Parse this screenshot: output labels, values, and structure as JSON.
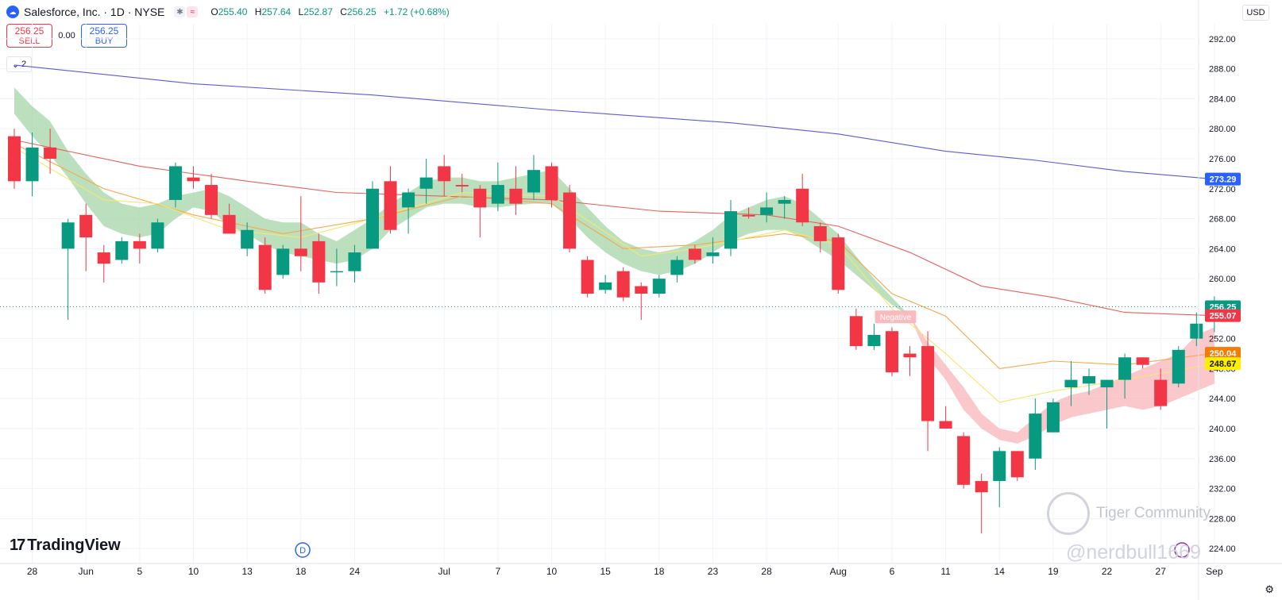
{
  "header": {
    "title": "Salesforce, Inc. · 1D · NYSE",
    "badge1": "✱",
    "badge2": "≈",
    "o_label": "O",
    "o": "255.40",
    "h_label": "H",
    "h": "257.64",
    "l_label": "L",
    "l": "252.87",
    "c_label": "C",
    "c": "256.25",
    "change": "+1.72 (+0.68%)"
  },
  "trade": {
    "sell_price": "256.25",
    "sell_label": "SELL",
    "spread": "0.00",
    "buy_price": "256.25",
    "buy_label": "BUY"
  },
  "indicator_toggle": {
    "icon": "chevron-down-icon",
    "count": "2"
  },
  "currency": "USD",
  "branding": {
    "tradingview": "TradingView",
    "watermark": "Tiger Community",
    "handle": "@nerdbull1669"
  },
  "colors": {
    "up": "#089981",
    "down": "#f23645",
    "ma200": "#5b5bd6",
    "ma50": "#e8615a",
    "ma20": "#f7a84a",
    "ma10": "#f5e86c",
    "cloud_up": "#a5d6a7",
    "cloud_down": "#f8b4b8"
  },
  "chart_data": {
    "type": "candlestick",
    "title": "Salesforce, Inc. · 1D · NYSE",
    "ylim": [
      222,
      294
    ],
    "y_ticks": [
      "292.00",
      "288.00",
      "284.00",
      "280.00",
      "276.00",
      "272.00",
      "268.00",
      "264.00",
      "260.00",
      "256.00",
      "252.00",
      "248.00",
      "244.00",
      "240.00",
      "236.00",
      "232.00",
      "228.00",
      "224.00"
    ],
    "x_ticks": [
      {
        "i": 1,
        "label": "28"
      },
      {
        "i": 4,
        "label": "Jun"
      },
      {
        "i": 7,
        "label": "5"
      },
      {
        "i": 10,
        "label": "10"
      },
      {
        "i": 13,
        "label": "13"
      },
      {
        "i": 16,
        "label": "18"
      },
      {
        "i": 19,
        "label": "24"
      },
      {
        "i": 24,
        "label": "Jul"
      },
      {
        "i": 27,
        "label": "7"
      },
      {
        "i": 30,
        "label": "10"
      },
      {
        "i": 33,
        "label": "15"
      },
      {
        "i": 36,
        "label": "18"
      },
      {
        "i": 39,
        "label": "23"
      },
      {
        "i": 42,
        "label": "28"
      },
      {
        "i": 46,
        "label": "Aug"
      },
      {
        "i": 49,
        "label": "6"
      },
      {
        "i": 52,
        "label": "11"
      },
      {
        "i": 55,
        "label": "14"
      },
      {
        "i": 58,
        "label": "19"
      },
      {
        "i": 61,
        "label": "22"
      },
      {
        "i": 64,
        "label": "27"
      },
      {
        "i": 67,
        "label": "Sep"
      }
    ],
    "candles": [
      {
        "o": 279.0,
        "h": 280.0,
        "l": 272.0,
        "c": 273.0
      },
      {
        "o": 273.0,
        "h": 279.5,
        "l": 271.0,
        "c": 277.5
      },
      {
        "o": 277.5,
        "h": 280.0,
        "l": 274.0,
        "c": 276.0
      },
      {
        "o": 264.0,
        "h": 268.0,
        "l": 254.5,
        "c": 267.5
      },
      {
        "o": 268.5,
        "h": 270.0,
        "l": 261.0,
        "c": 265.5
      },
      {
        "o": 263.5,
        "h": 264.5,
        "l": 259.5,
        "c": 262.0
      },
      {
        "o": 262.5,
        "h": 265.5,
        "l": 262.0,
        "c": 265.0
      },
      {
        "o": 265.0,
        "h": 266.0,
        "l": 262.0,
        "c": 264.0
      },
      {
        "o": 264.0,
        "h": 268.0,
        "l": 263.5,
        "c": 267.5
      },
      {
        "o": 270.5,
        "h": 275.5,
        "l": 269.5,
        "c": 275.0
      },
      {
        "o": 273.5,
        "h": 275.0,
        "l": 272.0,
        "c": 273.0
      },
      {
        "o": 272.5,
        "h": 274.0,
        "l": 268.0,
        "c": 268.5
      },
      {
        "o": 268.5,
        "h": 270.0,
        "l": 266.0,
        "c": 266.0
      },
      {
        "o": 264.0,
        "h": 267.5,
        "l": 263.0,
        "c": 266.5
      },
      {
        "o": 264.5,
        "h": 265.5,
        "l": 258.0,
        "c": 258.5
      },
      {
        "o": 260.5,
        "h": 264.5,
        "l": 260.0,
        "c": 264.0
      },
      {
        "o": 264.0,
        "h": 271.0,
        "l": 261.0,
        "c": 263.0
      },
      {
        "o": 265.0,
        "h": 266.0,
        "l": 258.0,
        "c": 259.5
      },
      {
        "o": 261.0,
        "h": 264.0,
        "l": 259.0,
        "c": 261.0
      },
      {
        "o": 261.0,
        "h": 264.5,
        "l": 259.5,
        "c": 263.5
      },
      {
        "o": 264.0,
        "h": 273.0,
        "l": 264.0,
        "c": 272.0
      },
      {
        "o": 273.0,
        "h": 275.0,
        "l": 266.0,
        "c": 266.5
      },
      {
        "o": 269.5,
        "h": 272.0,
        "l": 266.0,
        "c": 271.5
      },
      {
        "o": 272.0,
        "h": 276.0,
        "l": 270.0,
        "c": 273.5
      },
      {
        "o": 275.0,
        "h": 276.5,
        "l": 271.0,
        "c": 273.0
      },
      {
        "o": 272.5,
        "h": 274.0,
        "l": 271.5,
        "c": 272.3
      },
      {
        "o": 272.0,
        "h": 272.5,
        "l": 265.5,
        "c": 269.5
      },
      {
        "o": 270.0,
        "h": 275.5,
        "l": 269.0,
        "c": 272.5
      },
      {
        "o": 272.0,
        "h": 275.0,
        "l": 268.5,
        "c": 270.0
      },
      {
        "o": 271.5,
        "h": 276.5,
        "l": 270.5,
        "c": 274.5
      },
      {
        "o": 275.0,
        "h": 275.5,
        "l": 269.5,
        "c": 270.5
      },
      {
        "o": 271.5,
        "h": 272.5,
        "l": 263.5,
        "c": 264.0
      },
      {
        "o": 262.5,
        "h": 263.0,
        "l": 257.5,
        "c": 258.0
      },
      {
        "o": 258.5,
        "h": 260.5,
        "l": 258.0,
        "c": 259.5
      },
      {
        "o": 261.0,
        "h": 261.5,
        "l": 257.0,
        "c": 257.5
      },
      {
        "o": 259.0,
        "h": 259.5,
        "l": 254.5,
        "c": 258.0
      },
      {
        "o": 258.0,
        "h": 260.5,
        "l": 257.5,
        "c": 260.0
      },
      {
        "o": 260.5,
        "h": 263.0,
        "l": 259.5,
        "c": 262.5
      },
      {
        "o": 264.0,
        "h": 264.5,
        "l": 262.0,
        "c": 262.5
      },
      {
        "o": 263.0,
        "h": 265.5,
        "l": 262.0,
        "c": 263.5
      },
      {
        "o": 264.0,
        "h": 270.5,
        "l": 263.0,
        "c": 269.0
      },
      {
        "o": 268.5,
        "h": 269.5,
        "l": 268.0,
        "c": 268.3
      },
      {
        "o": 268.5,
        "h": 271.5,
        "l": 267.5,
        "c": 269.5
      },
      {
        "o": 270.0,
        "h": 271.0,
        "l": 268.0,
        "c": 270.5
      },
      {
        "o": 272.0,
        "h": 274.0,
        "l": 267.0,
        "c": 267.5
      },
      {
        "o": 267.0,
        "h": 267.5,
        "l": 263.5,
        "c": 265.0
      },
      {
        "o": 265.5,
        "h": 266.0,
        "l": 258.0,
        "c": 258.5
      },
      {
        "o": 255.0,
        "h": 256.0,
        "l": 250.5,
        "c": 251.0
      },
      {
        "o": 251.0,
        "h": 254.0,
        "l": 250.5,
        "c": 252.5
      },
      {
        "o": 253.0,
        "h": 253.5,
        "l": 247.0,
        "c": 247.5
      },
      {
        "o": 250.0,
        "h": 251.0,
        "l": 247.0,
        "c": 249.5
      },
      {
        "o": 251.0,
        "h": 253.0,
        "l": 237.0,
        "c": 241.0
      },
      {
        "o": 241.0,
        "h": 243.0,
        "l": 240.0,
        "c": 240.0
      },
      {
        "o": 239.0,
        "h": 239.5,
        "l": 232.0,
        "c": 232.5
      },
      {
        "o": 233.0,
        "h": 234.0,
        "l": 226.0,
        "c": 231.5
      },
      {
        "o": 233.0,
        "h": 237.5,
        "l": 229.5,
        "c": 237.0
      },
      {
        "o": 237.0,
        "h": 237.0,
        "l": 233.0,
        "c": 233.5
      },
      {
        "o": 236.0,
        "h": 244.0,
        "l": 234.5,
        "c": 242.0
      },
      {
        "o": 239.5,
        "h": 244.0,
        "l": 239.5,
        "c": 243.5
      },
      {
        "o": 245.5,
        "h": 249.0,
        "l": 243.0,
        "c": 246.5
      },
      {
        "o": 246.0,
        "h": 248.0,
        "l": 244.5,
        "c": 247.0
      },
      {
        "o": 245.5,
        "h": 246.5,
        "l": 240.0,
        "c": 246.5
      },
      {
        "o": 246.5,
        "h": 250.0,
        "l": 244.0,
        "c": 249.5
      },
      {
        "o": 249.5,
        "h": 249.5,
        "l": 248.0,
        "c": 248.5
      },
      {
        "o": 246.5,
        "h": 248.0,
        "l": 242.5,
        "c": 243.0
      },
      {
        "o": 246.0,
        "h": 251.0,
        "l": 245.5,
        "c": 250.5
      },
      {
        "o": 252.0,
        "h": 255.5,
        "l": 251.0,
        "c": 254.0
      },
      {
        "o": 255.4,
        "h": 257.64,
        "l": 252.87,
        "c": 256.25
      }
    ],
    "series": [
      {
        "name": "",
        "color": "#5b5bd6",
        "points": [
          [
            0,
            288.5
          ],
          [
            10,
            286.0
          ],
          [
            20,
            284.5
          ],
          [
            30,
            282.5
          ],
          [
            40,
            280.8
          ],
          [
            46,
            279.3
          ],
          [
            52,
            277.0
          ],
          [
            57,
            275.8
          ],
          [
            62,
            274.3
          ],
          [
            67,
            273.29
          ]
        ]
      },
      {
        "name": "",
        "color": "#e8615a",
        "points": [
          [
            0,
            278.5
          ],
          [
            7,
            275.0
          ],
          [
            13,
            273.0
          ],
          [
            18,
            271.5
          ],
          [
            24,
            271.0
          ],
          [
            30,
            270.5
          ],
          [
            36,
            269.0
          ],
          [
            42,
            268.5
          ],
          [
            46,
            267.0
          ],
          [
            50,
            263.5
          ],
          [
            54,
            259.0
          ],
          [
            58,
            257.5
          ],
          [
            62,
            255.5
          ],
          [
            67,
            255.07
          ]
        ]
      },
      {
        "name": "",
        "color": "#f7a84a",
        "points": [
          [
            0,
            278.0
          ],
          [
            5,
            272.0
          ],
          [
            10,
            268.5
          ],
          [
            15,
            266.0
          ],
          [
            20,
            268.0
          ],
          [
            25,
            271.0
          ],
          [
            30,
            270.0
          ],
          [
            34,
            264.0
          ],
          [
            38,
            264.5
          ],
          [
            43,
            266.0
          ],
          [
            46,
            265.0
          ],
          [
            49,
            258.0
          ],
          [
            52,
            255.0
          ],
          [
            55,
            248.0
          ],
          [
            58,
            249.0
          ],
          [
            62,
            248.5
          ],
          [
            67,
            250.04
          ]
        ]
      },
      {
        "name": "",
        "color": "#f5e86c",
        "points": [
          [
            0,
            277.5
          ],
          [
            5,
            270.5
          ],
          [
            8,
            270.0
          ],
          [
            12,
            266.5
          ],
          [
            16,
            265.5
          ],
          [
            20,
            268.0
          ],
          [
            25,
            271.5
          ],
          [
            30,
            271.0
          ],
          [
            35,
            263.0
          ],
          [
            38,
            264.0
          ],
          [
            43,
            266.5
          ],
          [
            46,
            264.5
          ],
          [
            49,
            256.0
          ],
          [
            52,
            250.0
          ],
          [
            55,
            243.5
          ],
          [
            58,
            245.0
          ],
          [
            62,
            246.5
          ],
          [
            67,
            248.67
          ]
        ]
      }
    ],
    "cloud_upper": [
      [
        0,
        285.5
      ],
      [
        1,
        283.0
      ],
      [
        2,
        281.0
      ],
      [
        3,
        277.0
      ],
      [
        4,
        274.0
      ],
      [
        5,
        271.5
      ],
      [
        6,
        270.0
      ],
      [
        7,
        269.5
      ],
      [
        8,
        270.0
      ],
      [
        9,
        271.0
      ],
      [
        10,
        271.5
      ],
      [
        11,
        272.0
      ],
      [
        12,
        271.0
      ],
      [
        13,
        269.5
      ],
      [
        14,
        268.0
      ],
      [
        15,
        267.5
      ],
      [
        16,
        267.5
      ],
      [
        17,
        266.0
      ],
      [
        18,
        265.0
      ],
      [
        19,
        266.5
      ],
      [
        20,
        268.0
      ],
      [
        21,
        270.0
      ],
      [
        22,
        271.5
      ],
      [
        23,
        273.0
      ],
      [
        24,
        273.5
      ],
      [
        25,
        273.5
      ],
      [
        26,
        273.0
      ],
      [
        27,
        273.0
      ],
      [
        28,
        273.5
      ],
      [
        29,
        274.0
      ],
      [
        30,
        274.5
      ],
      [
        31,
        272.0
      ],
      [
        32,
        269.5
      ],
      [
        33,
        267.0
      ],
      [
        34,
        265.0
      ],
      [
        35,
        264.0
      ],
      [
        36,
        263.5
      ],
      [
        37,
        264.0
      ],
      [
        38,
        265.0
      ],
      [
        39,
        266.5
      ],
      [
        40,
        268.5
      ],
      [
        41,
        269.5
      ],
      [
        42,
        270.5
      ],
      [
        43,
        271.0
      ],
      [
        44,
        270.0
      ],
      [
        45,
        268.0
      ],
      [
        46,
        266.0
      ],
      [
        47,
        263.0
      ],
      [
        48,
        260.0
      ],
      [
        49,
        257.5
      ],
      [
        50,
        255.0
      ]
    ],
    "cloud_lower": [
      [
        0,
        282.0
      ],
      [
        1,
        279.0
      ],
      [
        2,
        276.5
      ],
      [
        3,
        273.5
      ],
      [
        4,
        270.0
      ],
      [
        5,
        267.0
      ],
      [
        6,
        266.0
      ],
      [
        7,
        265.5
      ],
      [
        8,
        266.0
      ],
      [
        9,
        268.0
      ],
      [
        10,
        269.5
      ],
      [
        11,
        269.0
      ],
      [
        12,
        267.0
      ],
      [
        13,
        266.0
      ],
      [
        14,
        264.5
      ],
      [
        15,
        263.5
      ],
      [
        16,
        263.0
      ],
      [
        17,
        262.5
      ],
      [
        18,
        262.0
      ],
      [
        19,
        262.5
      ],
      [
        20,
        264.0
      ],
      [
        21,
        266.5
      ],
      [
        22,
        268.0
      ],
      [
        23,
        269.5
      ],
      [
        24,
        270.0
      ],
      [
        25,
        270.0
      ],
      [
        26,
        269.5
      ],
      [
        27,
        269.5
      ],
      [
        28,
        269.8
      ],
      [
        29,
        270.0
      ],
      [
        30,
        270.0
      ],
      [
        31,
        268.0
      ],
      [
        32,
        265.5
      ],
      [
        33,
        263.5
      ],
      [
        34,
        262.0
      ],
      [
        35,
        261.0
      ],
      [
        36,
        260.5
      ],
      [
        37,
        261.0
      ],
      [
        38,
        262.0
      ],
      [
        39,
        263.5
      ],
      [
        40,
        265.0
      ],
      [
        41,
        266.0
      ],
      [
        42,
        266.5
      ],
      [
        43,
        266.5
      ],
      [
        44,
        265.5
      ],
      [
        45,
        264.0
      ],
      [
        46,
        262.5
      ],
      [
        47,
        260.5
      ],
      [
        48,
        258.5
      ],
      [
        49,
        256.5
      ],
      [
        50,
        255.0
      ]
    ],
    "cloud_down_upper": [
      [
        50,
        255.0
      ],
      [
        51,
        251.5
      ],
      [
        52,
        248.5
      ],
      [
        53,
        245.5
      ],
      [
        54,
        242.0
      ],
      [
        55,
        240.0
      ],
      [
        56,
        239.5
      ],
      [
        57,
        241.5
      ],
      [
        58,
        243.5
      ],
      [
        59,
        244.5
      ],
      [
        60,
        245.0
      ],
      [
        61,
        246.0
      ],
      [
        62,
        247.0
      ],
      [
        63,
        248.0
      ],
      [
        64,
        249.0
      ],
      [
        65,
        250.0
      ],
      [
        66,
        252.5
      ],
      [
        67,
        253.5
      ]
    ],
    "cloud_down_lower": [
      [
        50,
        255.0
      ],
      [
        51,
        249.5
      ],
      [
        52,
        246.5
      ],
      [
        53,
        242.5
      ],
      [
        54,
        240.0
      ],
      [
        55,
        238.5
      ],
      [
        56,
        238.0
      ],
      [
        57,
        239.0
      ],
      [
        58,
        240.5
      ],
      [
        59,
        241.5
      ],
      [
        60,
        242.0
      ],
      [
        61,
        242.5
      ],
      [
        62,
        243.0
      ],
      [
        63,
        242.5
      ],
      [
        64,
        243.0
      ],
      [
        65,
        244.0
      ],
      [
        66,
        245.0
      ],
      [
        67,
        246.0
      ]
    ],
    "annotation": {
      "label": "Negative",
      "x": 49.2,
      "y": 254.8
    },
    "last_price_line": 256.25,
    "price_labels": [
      {
        "value": 273.29,
        "text": "273.29",
        "bg": "#2962ff",
        "fg": "#ffffff"
      },
      {
        "value": 256.25,
        "text": "256.25",
        "bg": "#089981",
        "fg": "#ffffff"
      },
      {
        "value": 255.07,
        "text": "255.07",
        "bg": "#f23645",
        "fg": "#ffffff"
      },
      {
        "value": 250.04,
        "text": "250.04",
        "bg": "#f57c00",
        "fg": "#ffffff"
      },
      {
        "value": 248.67,
        "text": "248.67",
        "bg": "#ffee00",
        "fg": "#131722"
      }
    ],
    "event_marker": {
      "label": "D",
      "i": 16.1
    }
  }
}
